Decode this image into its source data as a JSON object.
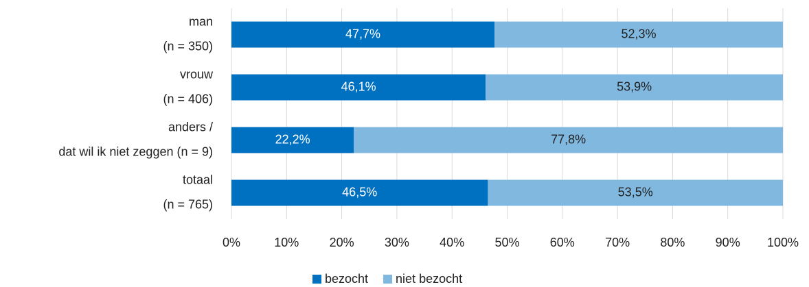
{
  "chart_data": {
    "type": "bar",
    "orientation": "horizontal",
    "stacked": true,
    "categories": [
      [
        "man",
        "(n = 350)"
      ],
      [
        "vrouw",
        "(n = 406)"
      ],
      [
        "anders /",
        "dat wil ik niet zeggen (n = 9)"
      ],
      [
        "totaal",
        "(n = 765)"
      ]
    ],
    "series": [
      {
        "name": "bezocht",
        "color": "#0070c0",
        "label_color": "#ffffff",
        "values": [
          47.7,
          46.1,
          22.2,
          46.5
        ],
        "value_labels": [
          "47,7%",
          "46,1%",
          "22,2%",
          "46,5%"
        ]
      },
      {
        "name": "niet bezocht",
        "color": "#80b8e0",
        "label_color": "#222222",
        "values": [
          52.3,
          53.9,
          77.8,
          53.5
        ],
        "value_labels": [
          "52,3%",
          "53,9%",
          "77,8%",
          "53,5%"
        ]
      }
    ],
    "xlim": [
      0,
      100
    ],
    "xticks": [
      {
        "value": 0,
        "label": "0%"
      },
      {
        "value": 10,
        "label": "10%"
      },
      {
        "value": 20,
        "label": "20%"
      },
      {
        "value": 30,
        "label": "30%"
      },
      {
        "value": 40,
        "label": "40%"
      },
      {
        "value": 50,
        "label": "50%"
      },
      {
        "value": 60,
        "label": "60%"
      },
      {
        "value": 70,
        "label": "70%"
      },
      {
        "value": 80,
        "label": "80%"
      },
      {
        "value": 90,
        "label": "90%"
      },
      {
        "value": 100,
        "label": "100%"
      }
    ],
    "grid": true,
    "legend": "bottom"
  }
}
